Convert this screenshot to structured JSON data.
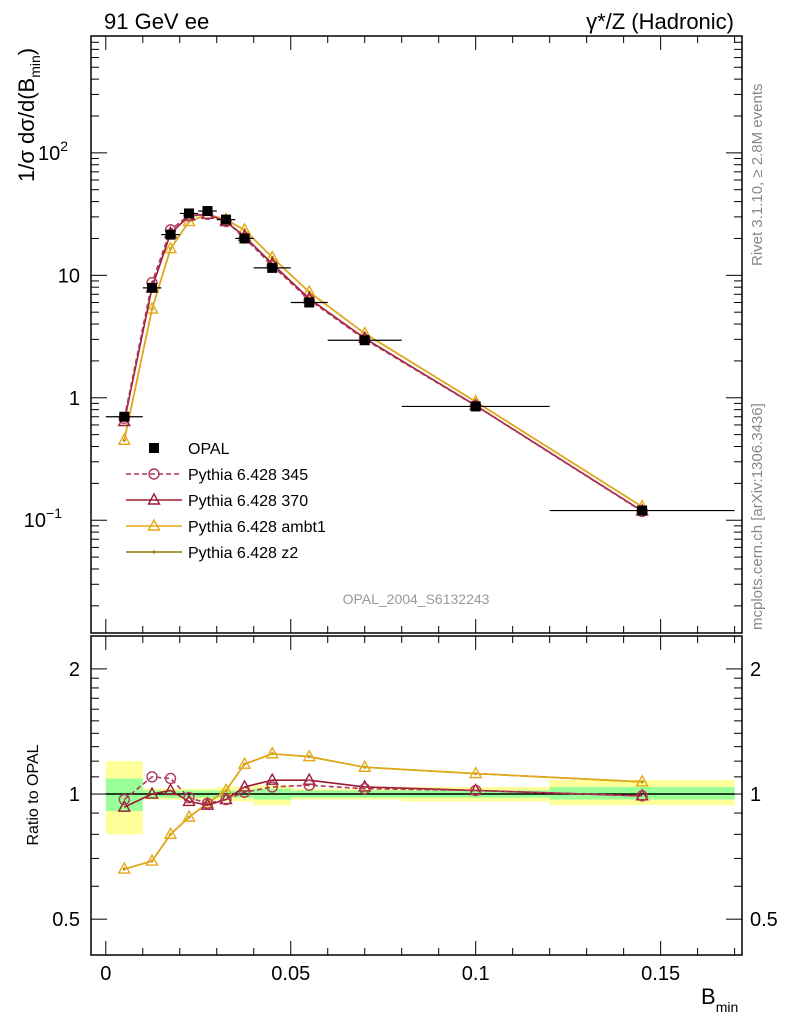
{
  "header": {
    "left": "91 GeV ee",
    "right": "γ*/Z (Hadronic)"
  },
  "side_labels": {
    "rivet": "Rivet 3.1.10, ≥ 2.8M events",
    "mcplots": "mcplots.cern.ch [arXiv:1306.3436]"
  },
  "analysis_id": "OPAL_2004_S6132243",
  "main_ylabel": "1/σ dσ/d(B",
  "main_ylabel_sub": "min",
  "main_ylabel_close": ")",
  "ratio_ylabel": "Ratio to OPAL",
  "xlabel": "B",
  "xlabel_sub": "min",
  "chart_data": [
    {
      "type": "line",
      "panel": "main",
      "scale": "log",
      "xlim": [
        -0.004,
        0.172
      ],
      "ylim": [
        0.012,
        900
      ],
      "x_ticks": [
        "0",
        "0.05",
        "0.1",
        "0.15"
      ],
      "y_ticks": [
        {
          "value": 0.1,
          "label": "10",
          "exp": "−1"
        },
        {
          "value": 1,
          "label": "1"
        },
        {
          "value": 10,
          "label": "10"
        },
        {
          "value": 100,
          "label": "10",
          "exp": "2"
        }
      ],
      "legend_position": "center-left",
      "series": [
        {
          "name": "OPAL",
          "style": "data",
          "color": "#000000",
          "x": [
            0.005,
            0.0125,
            0.0175,
            0.0225,
            0.0275,
            0.0325,
            0.0375,
            0.045,
            0.055,
            0.07,
            0.1,
            0.145
          ],
          "y": [
            0.7,
            7.9,
            21.5,
            32,
            33.5,
            28.5,
            20,
            11.5,
            6.0,
            2.95,
            0.85,
            0.12
          ],
          "xerr": [
            0.005,
            0.0025,
            0.0025,
            0.0025,
            0.0025,
            0.0025,
            0.0025,
            0.005,
            0.005,
            0.01,
            0.02,
            0.025
          ]
        },
        {
          "name": "Pythia 6.428 345",
          "style": "dashed-circle",
          "color": "#b03a5b",
          "x": [
            0.005,
            0.0125,
            0.0175,
            0.0225,
            0.0275,
            0.0325,
            0.0375,
            0.045,
            0.055,
            0.07,
            0.1,
            0.145
          ],
          "y": [
            0.68,
            8.7,
            23.5,
            31,
            31.5,
            27.5,
            20.2,
            12.0,
            6.3,
            3.0,
            0.86,
            0.118
          ]
        },
        {
          "name": "Pythia 6.428 370",
          "style": "solid-triangle",
          "color": "#9a1b33",
          "x": [
            0.005,
            0.0125,
            0.0175,
            0.0225,
            0.0275,
            0.0325,
            0.0375,
            0.045,
            0.055,
            0.07,
            0.1,
            0.145
          ],
          "y": [
            0.64,
            7.9,
            22,
            30.5,
            31.5,
            27.5,
            20.8,
            12.4,
            6.45,
            3.06,
            0.865,
            0.119
          ]
        },
        {
          "name": "Pythia 6.428 ambt1",
          "style": "solid-triangle",
          "color": "#e6a817",
          "x": [
            0.005,
            0.0125,
            0.0175,
            0.0225,
            0.0275,
            0.0325,
            0.0375,
            0.045,
            0.055,
            0.07,
            0.1,
            0.145
          ],
          "y": [
            0.45,
            5.3,
            16.5,
            27.5,
            31.5,
            28.5,
            23.5,
            14.0,
            7.3,
            3.35,
            0.93,
            0.129
          ]
        },
        {
          "name": "Pythia 6.428 z2",
          "style": "solid-dot",
          "color": "#8b8000",
          "x": [
            0.005,
            0.0125,
            0.0175,
            0.0225,
            0.0275,
            0.0325,
            0.0375,
            0.045,
            0.055,
            0.07,
            0.1,
            0.145
          ],
          "y": [
            0.45,
            5.3,
            16.5,
            27.5,
            31.5,
            28.5,
            23.5,
            14.0,
            7.3,
            3.35,
            0.93,
            0.129
          ]
        }
      ]
    },
    {
      "type": "line",
      "panel": "ratio",
      "scale": "log",
      "xlim": [
        -0.004,
        0.172
      ],
      "ylim": [
        0.41,
        2.4
      ],
      "x_ticks": [
        "0",
        "0.05",
        "0.1",
        "0.15"
      ],
      "y_ticks": [
        {
          "value": 0.5,
          "label": "0.5"
        },
        {
          "value": 1,
          "label": "1"
        },
        {
          "value": 2,
          "label": "2"
        }
      ],
      "bands": {
        "x_edges": [
          0,
          0.01,
          0.015,
          0.02,
          0.025,
          0.03,
          0.035,
          0.04,
          0.05,
          0.06,
          0.08,
          0.12,
          0.17
        ],
        "inner": [
          [
            0.91,
            1.09
          ],
          [
            0.98,
            1.02
          ],
          [
            0.98,
            1.02
          ],
          [
            0.98,
            1.02
          ],
          [
            0.98,
            1.02
          ],
          [
            0.98,
            1.02
          ],
          [
            0.98,
            1.02
          ],
          [
            0.97,
            1.03
          ],
          [
            0.98,
            1.02
          ],
          [
            0.98,
            1.02
          ],
          [
            0.98,
            1.02
          ],
          [
            0.97,
            1.04
          ]
        ],
        "outer": [
          [
            0.8,
            1.2
          ],
          [
            0.97,
            1.03
          ],
          [
            0.97,
            1.03
          ],
          [
            0.97,
            1.03
          ],
          [
            0.97,
            1.03
          ],
          [
            0.96,
            1.04
          ],
          [
            0.96,
            1.04
          ],
          [
            0.94,
            1.05
          ],
          [
            0.97,
            1.03
          ],
          [
            0.97,
            1.03
          ],
          [
            0.96,
            1.04
          ],
          [
            0.94,
            1.08
          ]
        ]
      },
      "series": [
        {
          "name": "Pythia 6.428 345",
          "style": "dashed-circle",
          "color": "#b03a5b",
          "x": [
            0.005,
            0.0125,
            0.0175,
            0.0225,
            0.0275,
            0.0325,
            0.0375,
            0.045,
            0.055,
            0.07,
            0.1,
            0.145
          ],
          "y": [
            0.97,
            1.1,
            1.09,
            0.98,
            0.95,
            0.97,
            1.01,
            1.04,
            1.05,
            1.03,
            1.02,
            0.99
          ]
        },
        {
          "name": "Pythia 6.428 370",
          "style": "solid-triangle",
          "color": "#9a1b33",
          "x": [
            0.005,
            0.0125,
            0.0175,
            0.0225,
            0.0275,
            0.0325,
            0.0375,
            0.045,
            0.055,
            0.07,
            0.1,
            0.145
          ],
          "y": [
            0.93,
            1.0,
            1.02,
            0.96,
            0.94,
            0.97,
            1.04,
            1.08,
            1.08,
            1.04,
            1.02,
            0.99
          ]
        },
        {
          "name": "Pythia 6.428 ambt1",
          "style": "solid-triangle",
          "color": "#e6a817",
          "x": [
            0.005,
            0.0125,
            0.0175,
            0.0225,
            0.0275,
            0.0325,
            0.0375,
            0.045,
            0.055,
            0.07,
            0.1,
            0.145
          ],
          "y": [
            0.66,
            0.69,
            0.8,
            0.88,
            0.95,
            1.02,
            1.18,
            1.25,
            1.23,
            1.16,
            1.12,
            1.07
          ]
        },
        {
          "name": "Pythia 6.428 z2",
          "style": "solid-dot",
          "color": "#8b8000",
          "x": [
            0.005,
            0.0125,
            0.0175,
            0.0225,
            0.0275,
            0.0325,
            0.0375,
            0.045,
            0.055,
            0.07,
            0.1,
            0.145
          ],
          "y": [
            0.66,
            0.69,
            0.8,
            0.88,
            0.95,
            1.02,
            1.18,
            1.25,
            1.23,
            1.16,
            1.12,
            1.07
          ]
        }
      ]
    }
  ]
}
